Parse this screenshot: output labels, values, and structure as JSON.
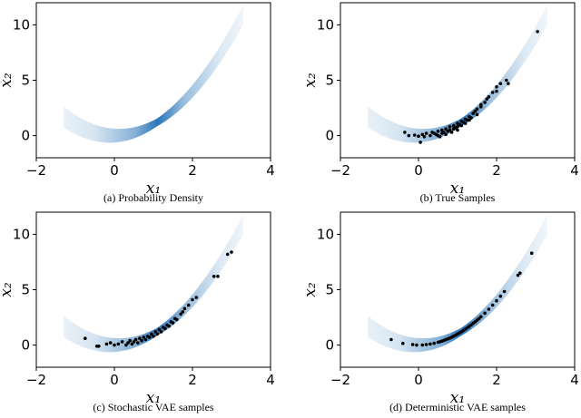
{
  "figure": {
    "subplots": [
      {
        "caption": "(a) Probability Density"
      },
      {
        "caption": "(b) True Samples"
      },
      {
        "caption": "(c) Stochastic VAE samples"
      },
      {
        "caption": "(d) Deterministic VAE samples"
      }
    ]
  },
  "chart_data": [
    {
      "type": "heatmap",
      "title": "(a) Probability Density",
      "xlabel": "x₁",
      "ylabel": "x₂",
      "xlim": [
        -2,
        4
      ],
      "ylim": [
        -2,
        12
      ],
      "xticks": [
        -2,
        0,
        2,
        4
      ],
      "yticks": [
        0,
        5,
        10
      ],
      "grid": false,
      "density": {
        "curve": "x2 = x1^2",
        "x1_range": [
          -1.3,
          3.3
        ],
        "peak_x1": 1.1,
        "colormap": "Blues"
      },
      "points": []
    },
    {
      "type": "scatter",
      "title": "(b) True Samples",
      "xlabel": "x₁",
      "ylabel": "x₂",
      "xlim": [
        -2,
        4
      ],
      "ylim": [
        -2,
        12
      ],
      "xticks": [
        -2,
        0,
        2,
        4
      ],
      "yticks": [
        0,
        5,
        10
      ],
      "grid": false,
      "density": {
        "curve": "x2 = x1^2",
        "x1_range": [
          -1.3,
          3.3
        ],
        "peak_x1": 1.1,
        "colormap": "Blues"
      },
      "points": [
        [
          -0.35,
          0.3
        ],
        [
          -0.25,
          0.0
        ],
        [
          -0.1,
          0.05
        ],
        [
          0.0,
          -0.05
        ],
        [
          0.05,
          -0.6
        ],
        [
          0.1,
          0.1
        ],
        [
          0.15,
          -0.1
        ],
        [
          0.2,
          0.2
        ],
        [
          0.3,
          0.0
        ],
        [
          0.35,
          0.3
        ],
        [
          0.4,
          0.2
        ],
        [
          0.45,
          0.1
        ],
        [
          0.5,
          0.4
        ],
        [
          0.5,
          0.0
        ],
        [
          0.55,
          -0.1
        ],
        [
          0.6,
          0.5
        ],
        [
          0.6,
          0.2
        ],
        [
          0.65,
          0.3
        ],
        [
          0.7,
          0.6
        ],
        [
          0.7,
          0.1
        ],
        [
          0.75,
          0.4
        ],
        [
          0.8,
          0.8
        ],
        [
          0.8,
          0.5
        ],
        [
          0.85,
          0.3
        ],
        [
          0.9,
          0.9
        ],
        [
          0.9,
          0.6
        ],
        [
          0.95,
          0.7
        ],
        [
          1.0,
          1.1
        ],
        [
          1.0,
          0.8
        ],
        [
          1.0,
          0.5
        ],
        [
          1.05,
          1.0
        ],
        [
          1.1,
          1.3
        ],
        [
          1.1,
          0.9
        ],
        [
          1.15,
          1.2
        ],
        [
          1.2,
          1.5
        ],
        [
          1.2,
          1.1
        ],
        [
          1.25,
          1.4
        ],
        [
          1.3,
          1.7
        ],
        [
          1.3,
          1.4
        ],
        [
          1.35,
          1.6
        ],
        [
          1.4,
          2.0
        ],
        [
          1.45,
          2.2
        ],
        [
          1.5,
          2.4
        ],
        [
          1.5,
          1.9
        ],
        [
          1.6,
          2.6
        ],
        [
          1.6,
          2.8
        ],
        [
          1.7,
          3.0
        ],
        [
          1.75,
          3.3
        ],
        [
          1.8,
          3.5
        ],
        [
          1.9,
          3.9
        ],
        [
          2.0,
          4.4
        ],
        [
          2.0,
          4.0
        ],
        [
          2.1,
          4.7
        ],
        [
          2.25,
          5.0
        ],
        [
          2.3,
          4.7
        ],
        [
          3.05,
          9.4
        ]
      ]
    },
    {
      "type": "scatter",
      "title": "(c) Stochastic VAE samples",
      "xlabel": "x₁",
      "ylabel": "x₂",
      "xlim": [
        -2,
        4
      ],
      "ylim": [
        -2,
        12
      ],
      "xticks": [
        -2,
        0,
        2,
        4
      ],
      "yticks": [
        0,
        5,
        10
      ],
      "grid": false,
      "density": {
        "curve": "x2 = x1^2",
        "x1_range": [
          -1.3,
          3.3
        ],
        "peak_x1": 1.1,
        "colormap": "Blues"
      },
      "points": [
        [
          -0.75,
          0.6
        ],
        [
          -0.45,
          -0.1
        ],
        [
          -0.4,
          -0.1
        ],
        [
          -0.2,
          0.1
        ],
        [
          -0.1,
          0.2
        ],
        [
          0.0,
          0.0
        ],
        [
          0.1,
          0.1
        ],
        [
          0.2,
          0.3
        ],
        [
          0.3,
          0.0
        ],
        [
          0.35,
          0.2
        ],
        [
          0.4,
          0.4
        ],
        [
          0.45,
          0.1
        ],
        [
          0.5,
          0.3
        ],
        [
          0.55,
          0.5
        ],
        [
          0.6,
          0.2
        ],
        [
          0.65,
          0.6
        ],
        [
          0.7,
          0.4
        ],
        [
          0.75,
          0.7
        ],
        [
          0.8,
          0.5
        ],
        [
          0.85,
          0.8
        ],
        [
          0.9,
          0.7
        ],
        [
          0.95,
          1.0
        ],
        [
          1.0,
          0.8
        ],
        [
          1.05,
          1.2
        ],
        [
          1.1,
          1.0
        ],
        [
          1.15,
          1.4
        ],
        [
          1.2,
          1.2
        ],
        [
          1.25,
          1.6
        ],
        [
          1.3,
          1.5
        ],
        [
          1.35,
          1.8
        ],
        [
          1.4,
          1.7
        ],
        [
          1.45,
          2.1
        ],
        [
          1.5,
          2.0
        ],
        [
          1.55,
          2.4
        ],
        [
          1.6,
          2.3
        ],
        [
          1.7,
          2.8
        ],
        [
          1.75,
          3.0
        ],
        [
          1.8,
          3.3
        ],
        [
          1.9,
          3.6
        ],
        [
          2.0,
          4.1
        ],
        [
          2.1,
          4.3
        ],
        [
          2.55,
          6.2
        ],
        [
          2.65,
          6.2
        ],
        [
          2.9,
          8.2
        ],
        [
          3.0,
          8.4
        ]
      ]
    },
    {
      "type": "scatter",
      "title": "(d) Deterministic VAE samples",
      "xlabel": "x₁",
      "ylabel": "x₂",
      "xlim": [
        -2,
        4
      ],
      "ylim": [
        -2,
        12
      ],
      "xticks": [
        -2,
        0,
        2,
        4
      ],
      "yticks": [
        0,
        5,
        10
      ],
      "grid": false,
      "density": {
        "curve": "x2 = x1^2",
        "x1_range": [
          -1.3,
          3.3
        ],
        "peak_x1": 1.1,
        "colormap": "Blues"
      },
      "points": [
        [
          -0.7,
          0.5
        ],
        [
          -0.4,
          0.15
        ],
        [
          -0.15,
          0.05
        ],
        [
          -0.05,
          0.0
        ],
        [
          0.1,
          0.0
        ],
        [
          0.2,
          0.05
        ],
        [
          0.3,
          0.1
        ],
        [
          0.4,
          0.16
        ],
        [
          0.5,
          0.25
        ],
        [
          0.55,
          0.3
        ],
        [
          0.6,
          0.36
        ],
        [
          0.65,
          0.42
        ],
        [
          0.7,
          0.49
        ],
        [
          0.75,
          0.56
        ],
        [
          0.8,
          0.64
        ],
        [
          0.85,
          0.72
        ],
        [
          0.9,
          0.81
        ],
        [
          0.95,
          0.9
        ],
        [
          1.0,
          1.0
        ],
        [
          1.05,
          1.1
        ],
        [
          1.1,
          1.21
        ],
        [
          1.15,
          1.32
        ],
        [
          1.2,
          1.44
        ],
        [
          1.25,
          1.56
        ],
        [
          1.3,
          1.69
        ],
        [
          1.35,
          1.82
        ],
        [
          1.4,
          1.96
        ],
        [
          1.45,
          2.1
        ],
        [
          1.5,
          2.25
        ],
        [
          1.55,
          2.4
        ],
        [
          1.6,
          2.56
        ],
        [
          1.7,
          2.89
        ],
        [
          1.8,
          3.24
        ],
        [
          1.9,
          3.61
        ],
        [
          2.0,
          4.0
        ],
        [
          2.1,
          4.41
        ],
        [
          2.2,
          4.84
        ],
        [
          2.55,
          6.3
        ],
        [
          2.6,
          6.5
        ],
        [
          2.9,
          8.3
        ]
      ]
    }
  ]
}
